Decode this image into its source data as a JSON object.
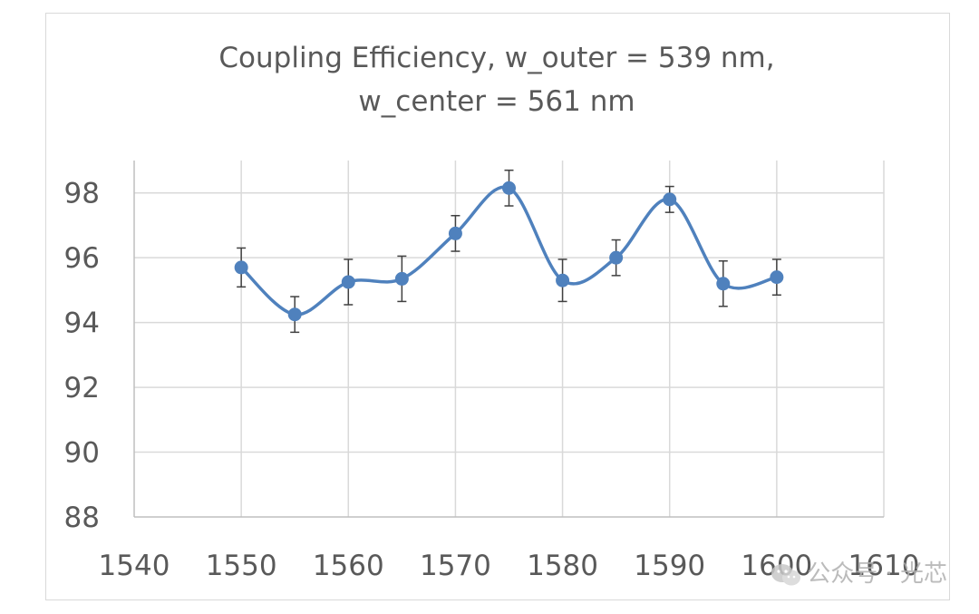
{
  "chart_data": {
    "type": "line",
    "title": "Coupling Efficiency, w_outer = 539 nm,\nw_center = 561 nm",
    "title_lines": [
      "Coupling Efficiency, w_outer = 539 nm,",
      "w_center = 561 nm"
    ],
    "xlabel": "",
    "ylabel": "",
    "xlim": [
      1540,
      1610
    ],
    "ylim": [
      88,
      99
    ],
    "x_ticks": [
      1540,
      1550,
      1560,
      1570,
      1580,
      1590,
      1600,
      1610
    ],
    "y_ticks": [
      88,
      90,
      92,
      94,
      96,
      98
    ],
    "grid": true,
    "smooth": true,
    "series": [
      {
        "color": "#4f81bd",
        "x": [
          1550,
          1555,
          1560,
          1565,
          1570,
          1575,
          1580,
          1585,
          1590,
          1595,
          1600
        ],
        "y": [
          95.7,
          94.25,
          95.25,
          95.35,
          96.75,
          98.15,
          95.3,
          96.0,
          97.8,
          95.2,
          95.4
        ],
        "error": [
          0.6,
          0.55,
          0.7,
          0.7,
          0.55,
          0.55,
          0.65,
          0.55,
          0.4,
          0.7,
          0.55
        ]
      }
    ]
  },
  "watermark": {
    "text": "公众号 · 光芯",
    "icon": "wechat-icon"
  }
}
